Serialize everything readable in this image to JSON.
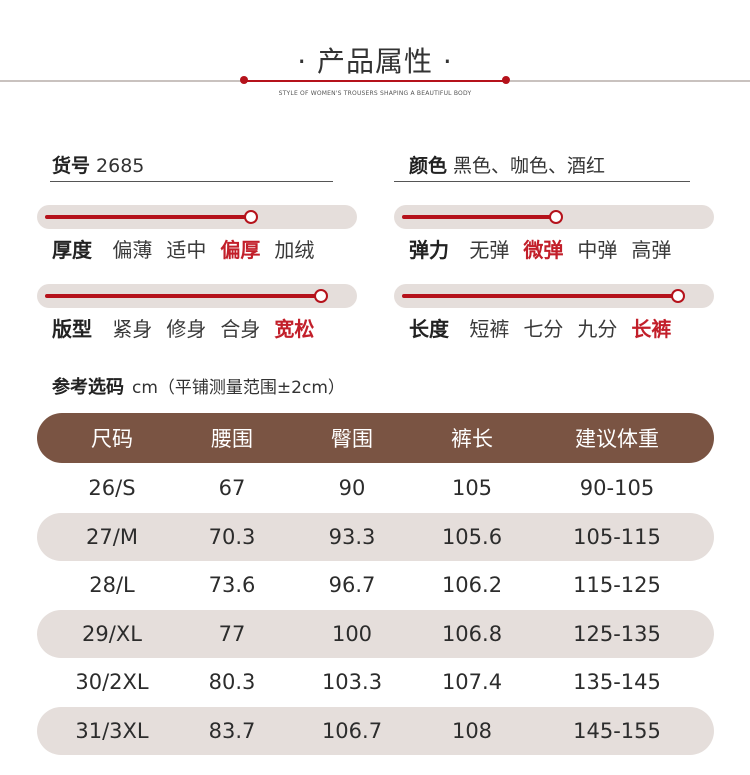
{
  "header": {
    "title": "· 产品属性 ·",
    "subtitle": "STYLE OF WOMEN'S TROUSERS SHAPING A BEAUTIFUL BODY",
    "accent_color": "#b5121b",
    "line_color": "#c9c2bf"
  },
  "item_no": {
    "label": "货号",
    "value": "2685"
  },
  "color": {
    "label": "颜色",
    "value": "黑色、咖色、酒红"
  },
  "thickness": {
    "label": "厚度",
    "options": [
      "偏薄",
      "适中",
      "偏厚",
      "加绒"
    ],
    "selected_index": 2,
    "level": 0.67
  },
  "elasticity": {
    "label": "弹力",
    "options": [
      "无弹",
      "微弹",
      "中弹",
      "高弹"
    ],
    "selected_index": 1,
    "level": 0.5
  },
  "fit": {
    "label": "版型",
    "options": [
      "紧身",
      "修身",
      "合身",
      "宽松"
    ],
    "selected_index": 3,
    "level": 0.9
  },
  "length": {
    "label": "长度",
    "options": [
      "短裤",
      "七分",
      "九分",
      "长裤"
    ],
    "selected_index": 3,
    "level": 0.9
  },
  "size_chart": {
    "title": "参考选码",
    "note": "cm（平铺测量范围±2cm）",
    "header_color": "#7a5443",
    "stripe_color": "#e5dedb",
    "headers": [
      "尺码",
      "腰围",
      "臀围",
      "裤长",
      "建议体重"
    ],
    "rows": [
      [
        "26/S",
        "67",
        "90",
        "105",
        "90-105"
      ],
      [
        "27/M",
        "70.3",
        "93.3",
        "105.6",
        "105-115"
      ],
      [
        "28/L",
        "73.6",
        "96.7",
        "106.2",
        "115-125"
      ],
      [
        "29/XL",
        "77",
        "100",
        "106.8",
        "125-135"
      ],
      [
        "30/2XL",
        "80.3",
        "103.3",
        "107.4",
        "135-145"
      ],
      [
        "31/3XL",
        "83.7",
        "106.7",
        "108",
        "145-155"
      ]
    ]
  }
}
